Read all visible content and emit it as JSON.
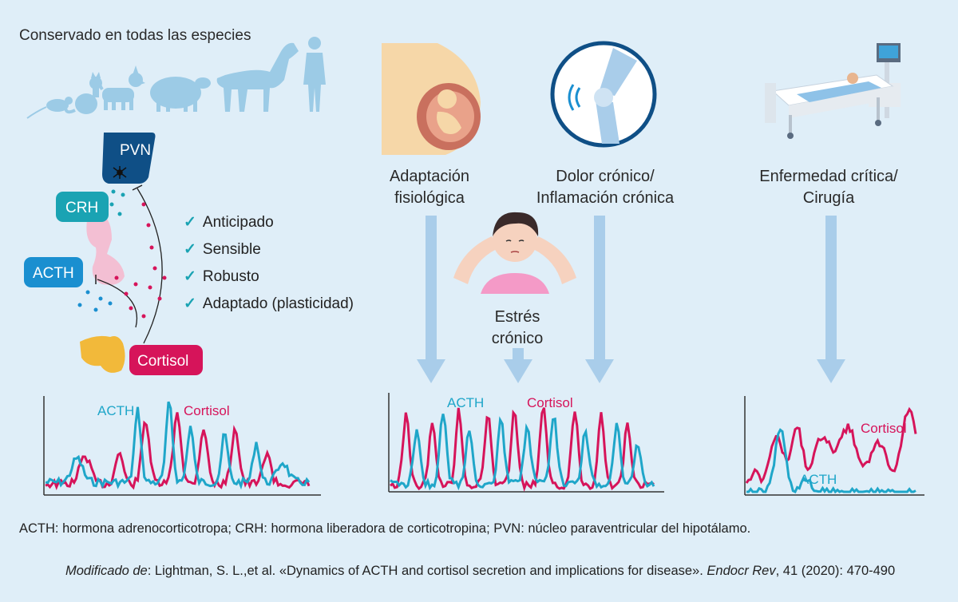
{
  "header": {
    "conserved": "Conservado en todas las especies"
  },
  "axis": {
    "pvn": "PVN",
    "crh": "CRH",
    "acth": "ACTH",
    "cortisol": "Cortisol"
  },
  "properties": [
    "Anticipado",
    "Sensible",
    "Robusto",
    "Adaptado (plasticidad)"
  ],
  "scenarios": {
    "adaptation": {
      "line1": "Adaptación",
      "line2": "fisiológica"
    },
    "pain": {
      "line1": "Dolor crónico/",
      "line2": "Inflamación crónica"
    },
    "stress": {
      "line1": "Estrés",
      "line2": "crónico"
    },
    "critical": {
      "line1": "Enfermedad crítica/",
      "line2": "Cirugía"
    }
  },
  "plots": {
    "normal": {
      "acth_label": "ACTH",
      "cortisol_label": "Cortisol"
    },
    "chronic": {
      "acth_label": "ACTH",
      "cortisol_label": "Cortisol"
    },
    "critical": {
      "acth_label": "ACTH",
      "cortisol_label": "Cortisol"
    }
  },
  "colors": {
    "acth": "#1fa6c9",
    "cortisol": "#d6145a",
    "pvn": "#0f4f86",
    "arrow": "#a9cdea",
    "silhouette": "#9ccbe6"
  },
  "footer": {
    "legend": "ACTH: hormona adrenocorticotropa; CRH: hormona liberadora de corticotropina; PVN: núcleo paraventricular del hipotálamo.",
    "source_prefix": "Modificado de",
    "source_main": ": Lightman, S. L.,et al. «Dynamics of ACTH and cortisol secretion and implications for disease». ",
    "source_journal": "Endocr Rev",
    "source_tail": ", 41 (2020): 470-490"
  }
}
